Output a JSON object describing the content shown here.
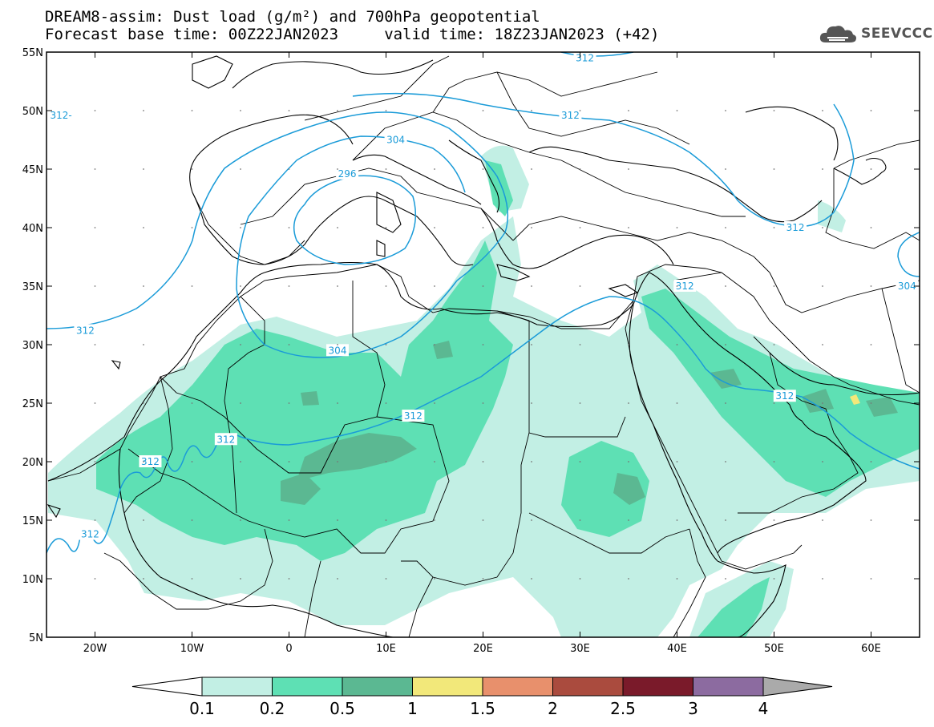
{
  "title": {
    "line1": "DREAM8-assim: Dust load (g/m²) and 700hPa geopotential",
    "line2": "Forecast base time: 00Z22JAN2023     valid time: 18Z23JAN2023 (+42)"
  },
  "logo": {
    "text": "SEEVCCC",
    "icon": "cloud-icon"
  },
  "map": {
    "lon_range": [
      -25,
      65
    ],
    "lat_range": [
      5,
      55
    ],
    "lon_ticks": [
      {
        "value": -20,
        "label": "20W"
      },
      {
        "value": -10,
        "label": "10W"
      },
      {
        "value": 0,
        "label": "0"
      },
      {
        "value": 10,
        "label": "10E"
      },
      {
        "value": 20,
        "label": "20E"
      },
      {
        "value": 30,
        "label": "30E"
      },
      {
        "value": 40,
        "label": "40E"
      },
      {
        "value": 50,
        "label": "50E"
      },
      {
        "value": 60,
        "label": "60E"
      }
    ],
    "lat_ticks": [
      {
        "value": 55,
        "label": "55N"
      },
      {
        "value": 50,
        "label": "50N"
      },
      {
        "value": 45,
        "label": "45N"
      },
      {
        "value": 40,
        "label": "40N"
      },
      {
        "value": 35,
        "label": "35N"
      },
      {
        "value": 30,
        "label": "30N"
      },
      {
        "value": 25,
        "label": "25N"
      },
      {
        "value": 20,
        "label": "20N"
      },
      {
        "value": 15,
        "label": "15N"
      },
      {
        "value": 10,
        "label": "10N"
      },
      {
        "value": 5,
        "label": "5N"
      }
    ],
    "contour_labels": [
      {
        "text": "312",
        "lon": 30.5,
        "lat": 54.5
      },
      {
        "text": "312",
        "lon": 29,
        "lat": 49.6
      },
      {
        "text": "312-",
        "lon": -23.5,
        "lat": 49.6
      },
      {
        "text": "304",
        "lon": 11,
        "lat": 47.5
      },
      {
        "text": "296",
        "lon": 6,
        "lat": 44.6
      },
      {
        "text": "312",
        "lon": 52.2,
        "lat": 40.0
      },
      {
        "text": "304",
        "lon": 63.7,
        "lat": 35.0
      },
      {
        "text": "312",
        "lon": 40.8,
        "lat": 35.0
      },
      {
        "text": "312",
        "lon": -21,
        "lat": 31.2
      },
      {
        "text": "304",
        "lon": 5,
        "lat": 29.5
      },
      {
        "text": "312",
        "lon": 51.1,
        "lat": 25.6
      },
      {
        "text": "312",
        "lon": 12.8,
        "lat": 23.9
      },
      {
        "text": "312",
        "lon": -6.5,
        "lat": 21.9
      },
      {
        "text": "312",
        "lon": -14.3,
        "lat": 20.0
      },
      {
        "text": "312",
        "lon": -20.5,
        "lat": 13.8
      }
    ]
  },
  "colorbar": {
    "colors": [
      "#c2efe4",
      "#5ee0b4",
      "#5bb892",
      "#f2e87a",
      "#e8906c",
      "#aa4b3e",
      "#7a1a2a",
      "#8c6ba0"
    ],
    "over_color": "#aaaaaa",
    "under_color": "#ffffff",
    "labels": [
      "0.1",
      "0.2",
      "0.5",
      "1",
      "1.5",
      "2",
      "2.5",
      "3",
      "4"
    ]
  }
}
